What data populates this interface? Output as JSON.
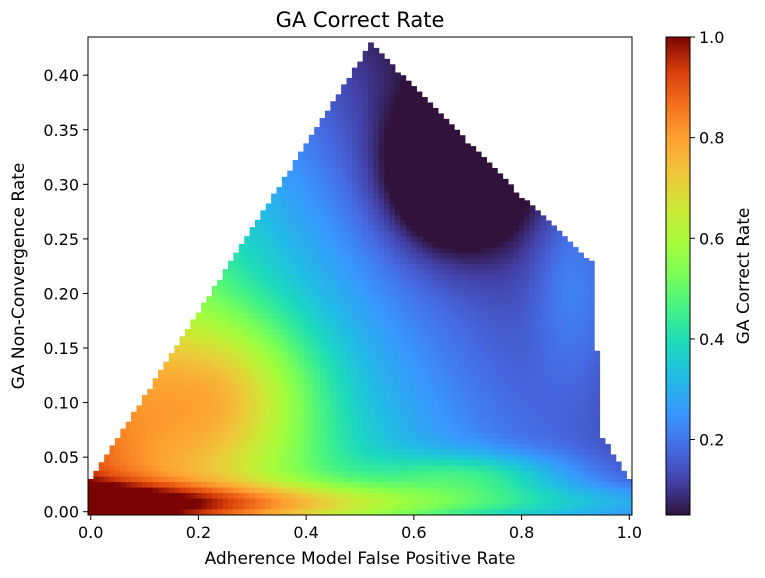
{
  "chart_data": {
    "type": "heatmap",
    "title": "GA Correct Rate",
    "xlabel": "Adherence Model False Positive Rate",
    "ylabel": "GA Non-Convergence Rate",
    "colorbar_label": "GA Correct Rate",
    "xlim": [
      -0.005,
      1.005
    ],
    "ylim": [
      -0.003,
      0.435
    ],
    "x_ticks": [
      0.0,
      0.2,
      0.4,
      0.6,
      0.8,
      1.0
    ],
    "x_tick_labels": [
      "0.0",
      "0.2",
      "0.4",
      "0.6",
      "0.8",
      "1.0"
    ],
    "y_ticks": [
      0.0,
      0.05,
      0.1,
      0.15,
      0.2,
      0.25,
      0.3,
      0.35,
      0.4
    ],
    "y_tick_labels": [
      "0.00",
      "0.05",
      "0.10",
      "0.15",
      "0.20",
      "0.25",
      "0.30",
      "0.35",
      "0.40"
    ],
    "colorbar_range": [
      0.05,
      1.0
    ],
    "colorbar_ticks": [
      0.2,
      0.4,
      0.6,
      0.8,
      1.0
    ],
    "colorbar_tick_labels": [
      "0.2",
      "0.4",
      "0.6",
      "0.8",
      "1.0"
    ],
    "colormap": "turbo",
    "grid": false,
    "boundary_left": [
      [
        0.0,
        0.03
      ],
      [
        0.52,
        0.43
      ]
    ],
    "boundary_right": [
      [
        0.52,
        0.43
      ],
      [
        0.8,
        0.29
      ],
      [
        0.93,
        0.23
      ],
      [
        0.95,
        0.07
      ],
      [
        1.0,
        0.03
      ]
    ]
  }
}
